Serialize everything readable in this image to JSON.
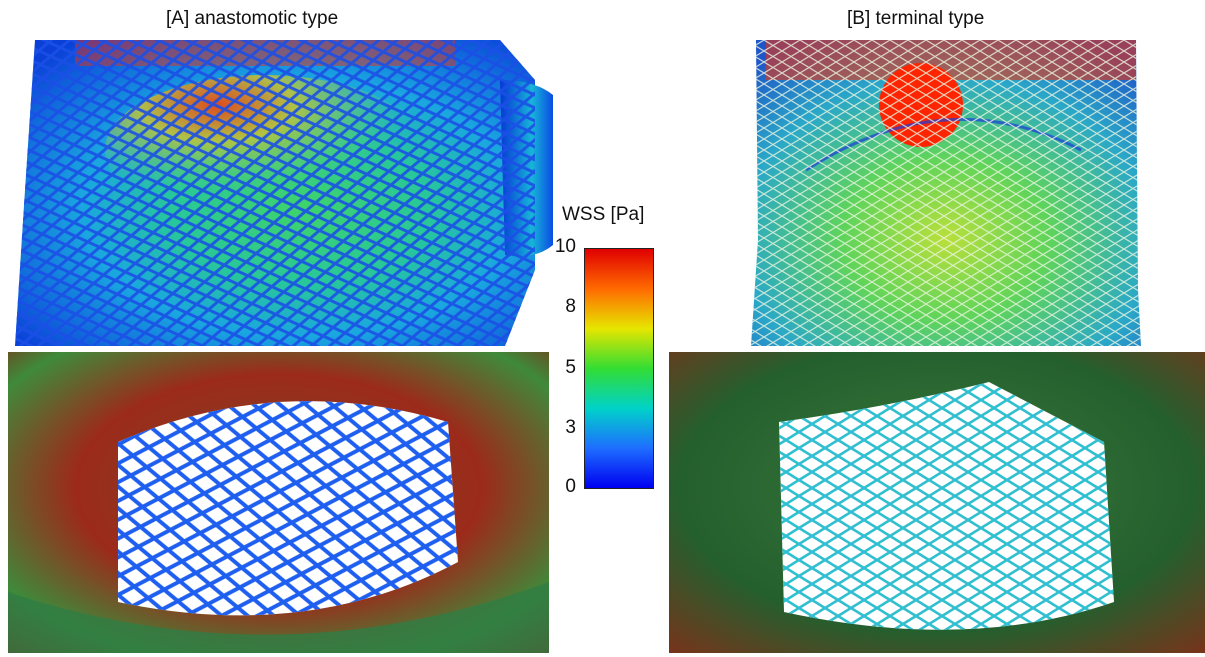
{
  "panels": {
    "a": {
      "title": "[A] anastomotic type"
    },
    "b": {
      "title": "[B] terminal  type"
    }
  },
  "colorbar": {
    "title": "WSS [Pa]",
    "ticks": [
      "10",
      "8",
      "5",
      "3",
      "0"
    ],
    "max": 10,
    "min": 0,
    "colors": [
      "#e00000",
      "#ff6a00",
      "#e6e600",
      "#33dd33",
      "#00d2c8",
      "#1e6eff",
      "#0000f0"
    ]
  }
}
